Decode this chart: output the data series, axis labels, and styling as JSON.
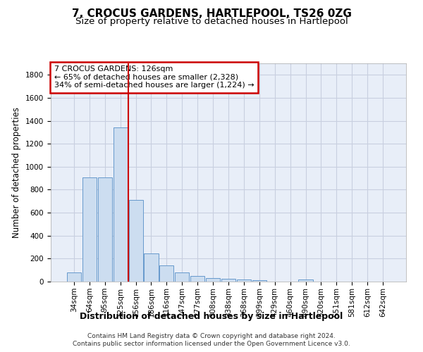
{
  "title": "7, CROCUS GARDENS, HARTLEPOOL, TS26 0ZG",
  "subtitle": "Size of property relative to detached houses in Hartlepool",
  "xlabel": "Distribution of detached houses by size in Hartlepool",
  "ylabel": "Number of detached properties",
  "bar_labels": [
    "34sqm",
    "64sqm",
    "95sqm",
    "125sqm",
    "156sqm",
    "186sqm",
    "216sqm",
    "247sqm",
    "277sqm",
    "308sqm",
    "338sqm",
    "368sqm",
    "399sqm",
    "429sqm",
    "460sqm",
    "490sqm",
    "520sqm",
    "551sqm",
    "581sqm",
    "612sqm",
    "642sqm"
  ],
  "bar_values": [
    80,
    905,
    905,
    1345,
    710,
    245,
    140,
    80,
    50,
    30,
    25,
    20,
    15,
    0,
    0,
    20,
    0,
    0,
    0,
    0,
    0
  ],
  "bar_color": "#ccddf0",
  "bar_edgecolor": "#6699cc",
  "property_line_x": 3.5,
  "property_line_color": "#cc0000",
  "annotation_line1": "7 CROCUS GARDENS: 126sqm",
  "annotation_line2": "← 65% of detached houses are smaller (2,328)",
  "annotation_line3": "34% of semi-detached houses are larger (1,224) →",
  "annotation_box_color": "#cc0000",
  "ylim": [
    0,
    1900
  ],
  "yticks": [
    0,
    200,
    400,
    600,
    800,
    1000,
    1200,
    1400,
    1600,
    1800
  ],
  "grid_color": "#c8cfe0",
  "bg_color": "#e8eef8",
  "footer_line1": "Contains HM Land Registry data © Crown copyright and database right 2024.",
  "footer_line2": "Contains public sector information licensed under the Open Government Licence v3.0.",
  "title_fontsize": 11,
  "subtitle_fontsize": 9.5,
  "xlabel_fontsize": 9,
  "ylabel_fontsize": 8.5,
  "tick_fontsize": 7.5,
  "annotation_fontsize": 8,
  "footer_fontsize": 6.5
}
